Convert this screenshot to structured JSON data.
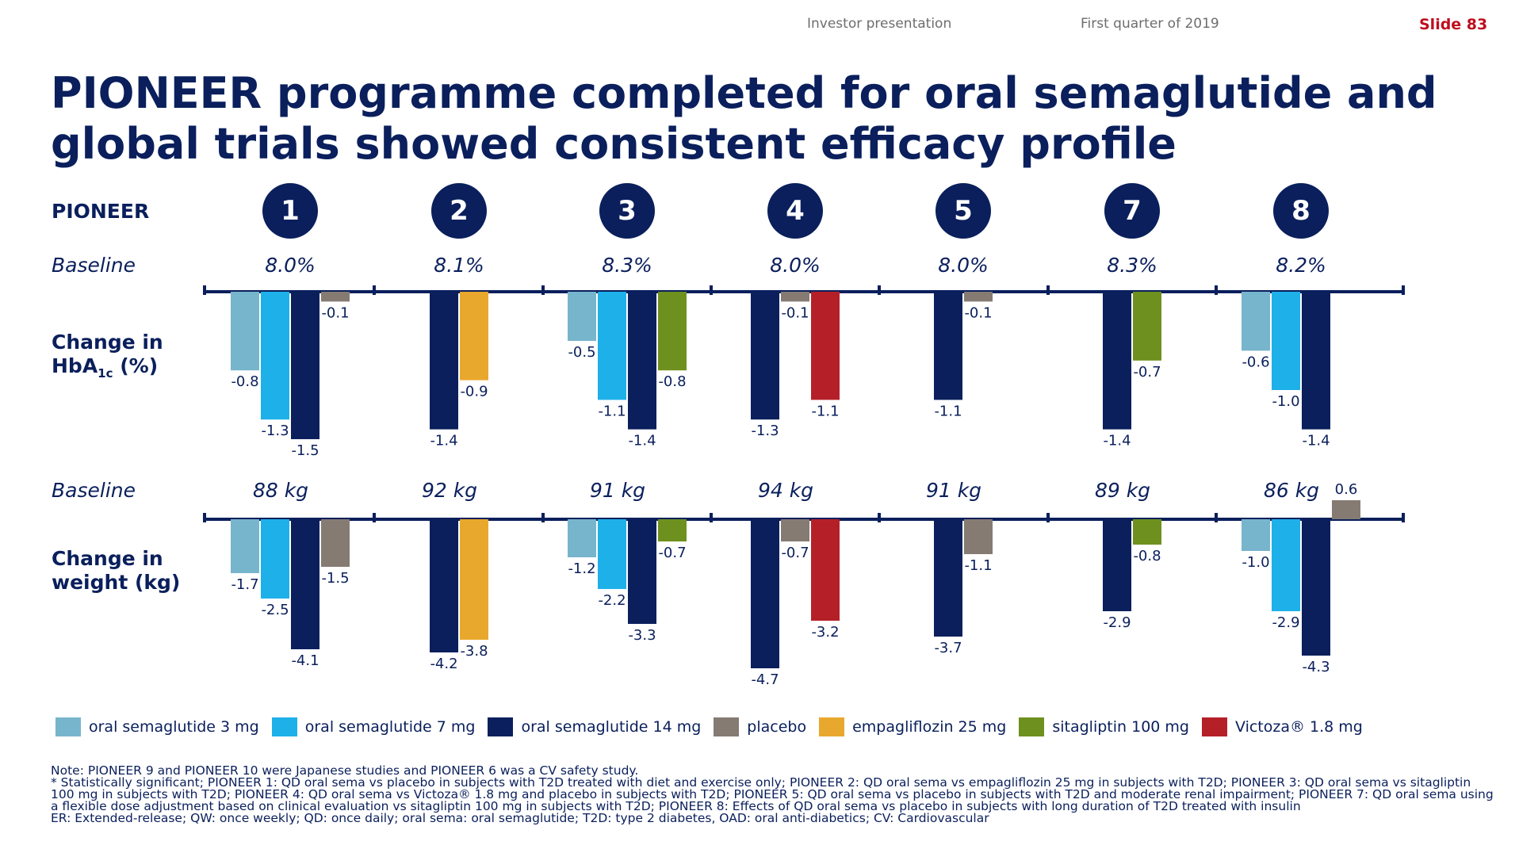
{
  "header": {
    "presentation": "Investor presentation",
    "quarter": "First quarter of 2019",
    "slide": "Slide 83"
  },
  "title": "PIONEER programme completed for oral semaglutide and global trials showed consistent efficacy profile",
  "labels": {
    "pioneer": "PIONEER",
    "baseline": "Baseline",
    "hba1c_line1": "Change in",
    "hba1c_line2": "HbA",
    "hba1c_sub": "1c",
    "hba1c_unit": " (%)",
    "weight_line1": "Change in",
    "weight_line2": "weight (kg)"
  },
  "colors": {
    "sema3": "#77b5cc",
    "sema7": "#1eb0e9",
    "sema14": "#0a1f5c",
    "placebo": "#857b73",
    "empagliflozin": "#e8a82d",
    "sitagliptin": "#6e901e",
    "victoza": "#b52028",
    "axis": "#0a1f5c"
  },
  "trials": [
    {
      "id": "1",
      "baseline_hba1c": "8.0%",
      "baseline_weight": "88 kg"
    },
    {
      "id": "2",
      "baseline_hba1c": "8.1%",
      "baseline_weight": "92 kg"
    },
    {
      "id": "3",
      "baseline_hba1c": "8.3%",
      "baseline_weight": "91 kg"
    },
    {
      "id": "4",
      "baseline_hba1c": "8.0%",
      "baseline_weight": "94 kg"
    },
    {
      "id": "5",
      "baseline_hba1c": "8.0%",
      "baseline_weight": "91 kg"
    },
    {
      "id": "7",
      "baseline_hba1c": "8.3%",
      "baseline_weight": "89 kg"
    },
    {
      "id": "8",
      "baseline_hba1c": "8.2%",
      "baseline_weight": "86 kg"
    }
  ],
  "legend": [
    {
      "key": "sema3",
      "label": "oral semaglutide 3 mg"
    },
    {
      "key": "sema7",
      "label": "oral semaglutide 7 mg"
    },
    {
      "key": "sema14",
      "label": "oral semaglutide 14 mg"
    },
    {
      "key": "placebo",
      "label": "placebo"
    },
    {
      "key": "empagliflozin",
      "label": "empagliflozin 25 mg"
    },
    {
      "key": "sitagliptin",
      "label": "sitagliptin 100 mg"
    },
    {
      "key": "victoza",
      "label": "Victoza® 1.8 mg"
    }
  ],
  "notes": [
    "Note: PIONEER 9 and PIONEER 10 were Japanese studies and PIONEER 6 was a CV safety study.",
    "* Statistically significant; PIONEER 1: QD oral sema vs placebo in subjects with T2D treated with diet and exercise only; PIONEER 2: QD oral sema vs empagliflozin 25 mg in subjects with T2D; PIONEER 3: QD oral sema vs sitagliptin 100 mg in subjects with T2D; PIONEER 4: QD oral sema vs Victoza® 1.8 mg and placebo in subjects with T2D; PIONEER 5: QD oral sema vs placebo in subjects with T2D and moderate renal impairment; PIONEER 7: QD oral sema using a flexible dose adjustment based on clinical evaluation vs sitagliptin 100 mg in subjects with T2D; PIONEER 8: Effects of QD oral sema vs placebo in subjects with long duration of T2D treated with insulin",
    "ER: Extended-release; QW: once weekly; QD: once daily; oral sema: oral semaglutide; T2D: type 2 diabetes, OAD: oral anti-diabetics; CV: Cardiovascular"
  ],
  "chart_data": [
    {
      "type": "bar",
      "ylabel": "Change in HbA1c (%)",
      "categories": [
        "1",
        "2",
        "3",
        "4",
        "5",
        "7",
        "8"
      ],
      "groups": [
        {
          "trial": "1",
          "bars": [
            {
              "series": "sema3",
              "value": -0.8,
              "label": "-0.8"
            },
            {
              "series": "sema7",
              "value": -1.3,
              "label": "-1.3"
            },
            {
              "series": "sema14",
              "value": -1.5,
              "label": "-1.5"
            },
            {
              "series": "placebo",
              "value": -0.1,
              "label": "-0.1"
            }
          ]
        },
        {
          "trial": "2",
          "bars": [
            {
              "series": "sema14",
              "value": -1.4,
              "label": "-1.4"
            },
            {
              "series": "empagliflozin",
              "value": -0.9,
              "label": "-0.9"
            }
          ]
        },
        {
          "trial": "3",
          "bars": [
            {
              "series": "sema3",
              "value": -0.5,
              "label": "-0.5"
            },
            {
              "series": "sema7",
              "value": -1.1,
              "label": "-1.1"
            },
            {
              "series": "sema14",
              "value": -1.4,
              "label": "-1.4"
            },
            {
              "series": "sitagliptin",
              "value": -0.8,
              "label": "-0.8"
            }
          ]
        },
        {
          "trial": "4",
          "bars": [
            {
              "series": "sema14",
              "value": -1.3,
              "label": "-1.3"
            },
            {
              "series": "placebo",
              "value": -0.1,
              "label": "-0.1"
            },
            {
              "series": "victoza",
              "value": -1.1,
              "label": "-1.1"
            }
          ]
        },
        {
          "trial": "5",
          "bars": [
            {
              "series": "sema14",
              "value": -1.1,
              "label": "-1.1"
            },
            {
              "series": "placebo",
              "value": -0.1,
              "label": "-0.1"
            }
          ]
        },
        {
          "trial": "7",
          "bars": [
            {
              "series": "sema14",
              "value": -1.4,
              "label": "-1.4"
            },
            {
              "series": "sitagliptin",
              "value": -0.7,
              "label": "-0.7"
            }
          ]
        },
        {
          "trial": "8",
          "bars": [
            {
              "series": "sema3",
              "value": -0.6,
              "label": "-0.6"
            },
            {
              "series": "sema7",
              "value": -1.0,
              "label": "-1.0"
            },
            {
              "series": "sema14",
              "value": -1.4,
              "label": "-1.4"
            }
          ]
        }
      ]
    },
    {
      "type": "bar",
      "ylabel": "Change in weight (kg)",
      "categories": [
        "1",
        "2",
        "3",
        "4",
        "5",
        "7",
        "8"
      ],
      "groups": [
        {
          "trial": "1",
          "bars": [
            {
              "series": "sema3",
              "value": -1.7,
              "label": "-1.7"
            },
            {
              "series": "sema7",
              "value": -2.5,
              "label": "-2.5"
            },
            {
              "series": "sema14",
              "value": -4.1,
              "label": "-4.1"
            },
            {
              "series": "placebo",
              "value": -1.5,
              "label": "-1.5"
            }
          ]
        },
        {
          "trial": "2",
          "bars": [
            {
              "series": "sema14",
              "value": -4.2,
              "label": "-4.2"
            },
            {
              "series": "empagliflozin",
              "value": -3.8,
              "label": "-3.8"
            }
          ]
        },
        {
          "trial": "3",
          "bars": [
            {
              "series": "sema3",
              "value": -1.2,
              "label": "-1.2"
            },
            {
              "series": "sema7",
              "value": -2.2,
              "label": "-2.2"
            },
            {
              "series": "sema14",
              "value": -3.3,
              "label": "-3.3"
            },
            {
              "series": "sitagliptin",
              "value": -0.7,
              "label": "-0.7"
            }
          ]
        },
        {
          "trial": "4",
          "bars": [
            {
              "series": "sema14",
              "value": -4.7,
              "label": "-4.7"
            },
            {
              "series": "placebo",
              "value": -0.7,
              "label": "-0.7"
            },
            {
              "series": "victoza",
              "value": -3.2,
              "label": "-3.2"
            }
          ]
        },
        {
          "trial": "5",
          "bars": [
            {
              "series": "sema14",
              "value": -3.7,
              "label": "-3.7"
            },
            {
              "series": "placebo",
              "value": -1.1,
              "label": "-1.1"
            }
          ]
        },
        {
          "trial": "7",
          "bars": [
            {
              "series": "sema14",
              "value": -2.9,
              "label": "-2.9"
            },
            {
              "series": "sitagliptin",
              "value": -0.8,
              "label": "-0.8"
            }
          ]
        },
        {
          "trial": "8",
          "bars": [
            {
              "series": "sema3",
              "value": -1.0,
              "label": "-1.0"
            },
            {
              "series": "sema7",
              "value": -2.9,
              "label": "-2.9"
            },
            {
              "series": "sema14",
              "value": -4.3,
              "label": "-4.3"
            },
            {
              "series": "placebo",
              "value": 0.6,
              "label": "0.6"
            }
          ]
        }
      ]
    }
  ]
}
